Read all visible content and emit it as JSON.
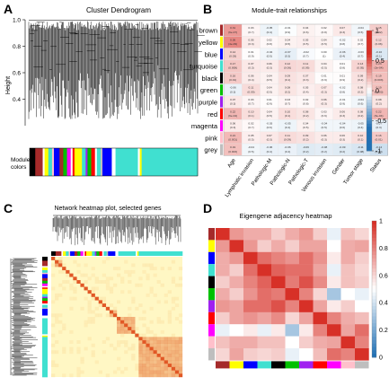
{
  "panels": {
    "A": {
      "letter": "A",
      "title": "Cluster Dendrogram",
      "ylabel": "Height",
      "ylim": [
        0.2,
        1.0
      ],
      "yticks": [
        "1.0",
        "0.8",
        "0.6",
        "0.4"
      ],
      "module_label_line1": "Module",
      "module_label_line2": "colors",
      "module_blocks": [
        {
          "color": "#000000",
          "w": 3
        },
        {
          "color": "#a52a2a",
          "w": 4
        },
        {
          "color": "#ffffff",
          "w": 1
        },
        {
          "color": "#ffff00",
          "w": 2
        },
        {
          "color": "#40e0d0",
          "w": 2
        },
        {
          "color": "#ffc0cb",
          "w": 1
        },
        {
          "color": "#0000ff",
          "w": 3
        },
        {
          "color": "#a52a2a",
          "w": 2
        },
        {
          "color": "#00c000",
          "w": 2
        },
        {
          "color": "#ff00ff",
          "w": 2
        },
        {
          "color": "#ffffff",
          "w": 1
        },
        {
          "color": "#ff0000",
          "w": 1
        },
        {
          "color": "#ffff00",
          "w": 4
        },
        {
          "color": "#40e0d0",
          "w": 2
        },
        {
          "color": "#a020f0",
          "w": 1
        },
        {
          "color": "#00c000",
          "w": 2
        },
        {
          "color": "#ff0000",
          "w": 2
        },
        {
          "color": "#ffffff",
          "w": 1
        },
        {
          "color": "#40e0d0",
          "w": 2
        },
        {
          "color": "#bebebe",
          "w": 1
        },
        {
          "color": "#0000ff",
          "w": 5
        },
        {
          "color": "#ffffff",
          "w": 2
        },
        {
          "color": "#40e0d0",
          "w": 12
        },
        {
          "color": "#ffffff",
          "w": 1
        },
        {
          "color": "#ffff00",
          "w": 1
        },
        {
          "color": "#40e0d0",
          "w": 30
        }
      ]
    },
    "B": {
      "letter": "B",
      "title": "Module-trait relationships",
      "modules": [
        "brown",
        "yellow",
        "blue",
        "turquoise",
        "black",
        "green",
        "purple",
        "red",
        "magenta",
        "pink",
        "grey"
      ],
      "module_colors": [
        "#a52a2a",
        "#ffff00",
        "#0000ff",
        "#40e0d0",
        "#000000",
        "#00c000",
        "#a020f0",
        "#ff0000",
        "#ff00ff",
        "#ffc0cb",
        "#bebebe"
      ],
      "traits": [
        "Age",
        "Lymphatic invasion",
        "Pathologic-M",
        "Pathologic-N",
        "Pathologic-T",
        "Venous invasion",
        "Gender",
        "Tumor stage",
        "Status"
      ],
      "colorbar_ticks": [
        "1",
        "0.5",
        "0",
        "-0.5",
        "-1"
      ]
    },
    "C": {
      "letter": "C",
      "title": "Network heatmap plot, selected genes"
    },
    "D": {
      "letter": "D",
      "title": "Eigengene adjacency heatmap",
      "colorbar_ticks": [
        "1",
        "0.8",
        "0.6",
        "0.4",
        "0.2",
        "0"
      ]
    }
  },
  "chart_data": [
    {
      "type": "dendrogram",
      "panel": "A",
      "title": "Cluster Dendrogram",
      "ylabel": "Height",
      "ylim": [
        0.2,
        1.0
      ]
    },
    {
      "type": "heatmap",
      "panel": "B",
      "title": "Module-trait relationships",
      "rows": [
        "brown",
        "yellow",
        "blue",
        "turquoise",
        "black",
        "green",
        "purple",
        "red",
        "magenta",
        "pink",
        "grey"
      ],
      "columns": [
        "Age",
        "Lymphatic invasion",
        "Pathologic-M",
        "Pathologic-N",
        "Pathologic-T",
        "Venous invasion",
        "Gender",
        "Tumor stage",
        "Status"
      ],
      "values": [
        [
          0.31,
          0.03,
          -0.05,
          -0.01,
          0.04,
          0.02,
          0.07,
          -0.04,
          0.15
        ],
        [
          0.36,
          0.06,
          0.02,
          0.04,
          0.05,
          0.04,
          -0.02,
          0.02,
          0.12
        ],
        [
          0.14,
          0.01,
          -0.04,
          -0.07,
          -0.02,
          0.0,
          -0.06,
          -0.03,
          -0.1
        ],
        [
          0.17,
          0.07,
          0.06,
          0.12,
          0.11,
          0.04,
          0.01,
          0.13,
          0.23
        ],
        [
          0.16,
          0.06,
          0.04,
          0.09,
          0.07,
          0.01,
          0.01,
          0.09,
          0.19
        ],
        [
          -0.06,
          0.11,
          0.04,
          0.08,
          0.05,
          0.07,
          -0.02,
          0.08,
          0.19
        ],
        [
          0.07,
          0.03,
          0.01,
          0.03,
          0.02,
          0.06,
          -0.01,
          -0.04,
          0.08
        ],
        [
          0.22,
          0.1,
          0.04,
          0.1,
          0.08,
          0.03,
          0.06,
          0.08,
          0.22
        ],
        [
          0.06,
          0.02,
          -0.03,
          -0.05,
          0.04,
          -0.04,
          -0.04,
          -0.05,
          -0.07
        ],
        [
          0.21,
          0.05,
          0.07,
          0.11,
          0.09,
          0.06,
          0.06,
          0.1,
          0.16
        ],
        [
          0.19,
          -0.04,
          -0.06,
          -0.06,
          -0.09,
          -0.08,
          -0.09,
          -0.11,
          -0.14
        ]
      ],
      "pvalues": [
        [
          "6e-07",
          "0.7",
          "0.4",
          "0.9",
          "0.6",
          "0.8",
          "0.3",
          "0.5",
          "0.02"
        ],
        [
          "4e-09",
          "0.3",
          "0.8",
          "0.5",
          "0.5",
          "0.5",
          "0.8",
          "0.7",
          "0.06"
        ],
        [
          "0.03",
          "0.9",
          "0.5",
          "0.3",
          "0.7",
          "1",
          "0.4",
          "0.7",
          "0.1"
        ],
        [
          "0.008",
          "0.3",
          "0.3",
          "0.06",
          "0.09",
          "0.5",
          "0.8",
          "0.05",
          "3e-04"
        ],
        [
          "0.01",
          "0.4",
          "0.5",
          "0.1",
          "0.3",
          "0.9",
          "0.9",
          "0.2",
          "0.003"
        ],
        [
          "0.3",
          "0.09",
          "0.5",
          "0.2",
          "0.4",
          "0.3",
          "0.8",
          "0.2",
          "0.003"
        ],
        [
          "0.3",
          "0.7",
          "0.9",
          "0.7",
          "0.8",
          "0.3",
          "0.9",
          "0.6",
          "0.2"
        ],
        [
          "6e-04",
          "0.1",
          "0.5",
          "0.1",
          "0.2",
          "0.6",
          "0.3",
          "0.2",
          "6e-04"
        ],
        [
          "0.3",
          "0.7",
          "0.6",
          "0.4",
          "0.5",
          "0.5",
          "0.6",
          "0.4",
          "0.3"
        ],
        [
          "0.001",
          "0.5",
          "0.3",
          "0.09",
          "0.2",
          "0.3",
          "0.3",
          "0.1",
          "0.01"
        ],
        [
          "0.003",
          "0.5",
          "0.4",
          "0.4",
          "0.2",
          "0.2",
          "0.2",
          "0.08",
          "0.03"
        ]
      ],
      "colorscale": [
        -1,
        1
      ]
    },
    {
      "type": "heatmap",
      "panel": "C",
      "title": "Network heatmap plot, selected genes"
    },
    {
      "type": "heatmap",
      "panel": "D",
      "title": "Eigengene adjacency heatmap",
      "order": [
        "brown",
        "yellow",
        "blue",
        "turquoise",
        "black",
        "green",
        "purple",
        "red",
        "magenta",
        "pink",
        "grey"
      ],
      "values": [
        [
          1.0,
          0.75,
          0.7,
          0.7,
          0.62,
          0.7,
          0.75,
          0.62,
          0.45,
          0.65,
          0.6
        ],
        [
          0.75,
          1.0,
          0.75,
          0.62,
          0.7,
          0.62,
          0.72,
          0.72,
          0.5,
          0.7,
          0.72
        ],
        [
          0.7,
          0.75,
          1.0,
          0.85,
          0.8,
          0.76,
          0.85,
          0.76,
          0.55,
          0.7,
          0.62
        ],
        [
          0.7,
          0.62,
          0.85,
          1.0,
          0.88,
          0.85,
          0.85,
          0.72,
          0.45,
          0.65,
          0.6
        ],
        [
          0.62,
          0.7,
          0.8,
          0.88,
          1.0,
          0.82,
          0.92,
          0.78,
          0.55,
          0.65,
          0.62
        ],
        [
          0.7,
          0.62,
          0.76,
          0.85,
          0.82,
          1.0,
          0.8,
          0.6,
          0.3,
          0.5,
          0.45
        ],
        [
          0.75,
          0.72,
          0.85,
          0.85,
          0.92,
          0.8,
          1.0,
          0.72,
          0.55,
          0.62,
          0.5
        ],
        [
          0.62,
          0.72,
          0.76,
          0.72,
          0.78,
          0.6,
          0.72,
          1.0,
          0.8,
          0.7,
          0.66
        ],
        [
          0.45,
          0.5,
          0.55,
          0.45,
          0.55,
          0.3,
          0.55,
          0.8,
          1.0,
          0.72,
          0.85
        ],
        [
          0.65,
          0.7,
          0.7,
          0.65,
          0.65,
          0.5,
          0.62,
          0.7,
          0.72,
          1.0,
          0.8
        ],
        [
          0.6,
          0.72,
          0.62,
          0.6,
          0.62,
          0.45,
          0.5,
          0.66,
          0.85,
          0.8,
          1.0
        ]
      ],
      "colorscale": [
        0,
        1
      ]
    }
  ]
}
